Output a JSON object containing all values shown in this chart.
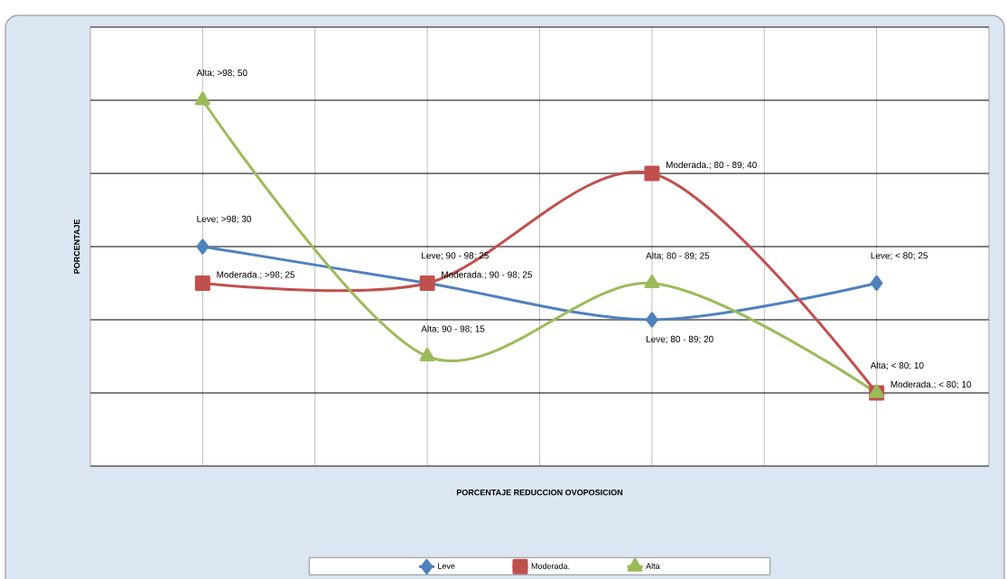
{
  "chart_data": {
    "type": "line",
    "xlabel": "PORCENTAJE REDUCCION OVOPOSICION",
    "ylabel": "PORCENTAJE",
    "categories": [
      null,
      null,
      null,
      null
    ],
    "series": [
      {
        "name": "Leve",
        "color": "#4f81bd",
        "marker": "diamond",
        "values": [
          30,
          25,
          20,
          25
        ],
        "value_labels": [
          "Leve; >98; 30",
          "Leve; 90 - 98; 25",
          "Leve; 80 - 89; 20",
          "Leve; < 80; 25"
        ]
      },
      {
        "name": "Moderada.",
        "color": "#c0504d",
        "marker": "square",
        "values": [
          25,
          25,
          40,
          10
        ],
        "value_labels": [
          "Moderada.; >98; 25",
          "Moderada.; 90 - 98; 25",
          "Moderada.; 80 - 89; 40",
          "Moderada.; < 80; 10"
        ]
      },
      {
        "name": "Alta",
        "color": "#9bbb59",
        "marker": "triangle",
        "values": [
          50,
          15,
          25,
          10
        ],
        "value_labels": [
          "Alta; >98; 50",
          "Alta; 90 - 98; 15",
          "Alta; 80 - 89; 25",
          "Alta; < 80; 10"
        ]
      }
    ],
    "ylim": [
      0,
      60
    ],
    "yticks": [
      {
        "value": 0,
        "label": null
      },
      {
        "value": 10,
        "label": null
      },
      {
        "value": 20,
        "label": null
      },
      {
        "value": 30,
        "label": null
      },
      {
        "value": 40,
        "label": null
      },
      {
        "value": 50,
        "label": null
      },
      {
        "value": 60,
        "label": null
      }
    ],
    "grid": true,
    "legend": "bottom",
    "line_style": "solid"
  }
}
